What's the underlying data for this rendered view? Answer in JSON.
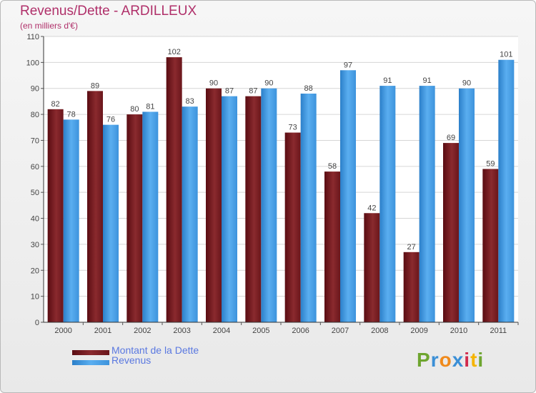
{
  "chart_data": {
    "type": "bar",
    "title": "Revenus/Dette - ARDILLEUX",
    "subtitle": "(en milliers d'€)",
    "categories": [
      "2000",
      "2001",
      "2002",
      "2003",
      "2004",
      "2005",
      "2006",
      "2007",
      "2008",
      "2009",
      "2010",
      "2011"
    ],
    "series": [
      {
        "name": "Montant de la Dette",
        "values": [
          82,
          89,
          80,
          102,
          90,
          87,
          73,
          58,
          42,
          27,
          69,
          59
        ],
        "color": "#7a1e24"
      },
      {
        "name": "Revenus",
        "values": [
          78,
          76,
          81,
          83,
          87,
          90,
          88,
          97,
          91,
          91,
          90,
          101
        ],
        "color": "#4a9ee0"
      }
    ],
    "ylim": [
      0,
      110
    ],
    "yticks": [
      0,
      10,
      20,
      30,
      40,
      50,
      60,
      70,
      80,
      90,
      100,
      110
    ],
    "grid": true,
    "legend_position": "bottom-left"
  },
  "logo": {
    "text": "Proxiti",
    "letters": [
      "P",
      "r",
      "o",
      "x",
      "i",
      "t",
      "i"
    ],
    "colors": [
      "#6ea52f",
      "#3b8fd6",
      "#f08a1c",
      "#3b8fd6",
      "#d12a4c",
      "#f5b400",
      "#6ea52f"
    ]
  }
}
